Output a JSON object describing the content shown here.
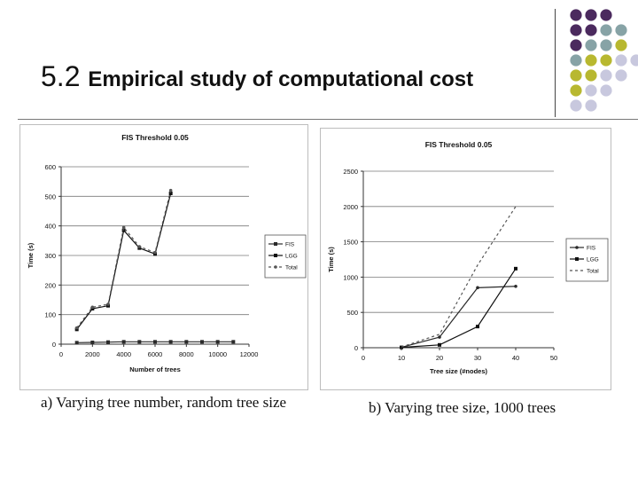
{
  "slide": {
    "title_num": "5.2",
    "title_text": "Empirical study of computational cost",
    "caption_a": "a) Varying tree number, random tree size",
    "caption_b": "b) Varying tree size, 1000 trees",
    "decor_colors": {
      "purple": "#4b2a5e",
      "teal": "#87a3a6",
      "olive": "#b8b830",
      "lavender": "#c8c8de"
    }
  },
  "chart_data": [
    {
      "type": "line",
      "title": "FIS Threshold 0.05",
      "xlabel": "Number of trees",
      "ylabel": "Time (s)",
      "xlim": [
        0,
        12000
      ],
      "ylim": [
        0,
        600
      ],
      "xticks": [
        0,
        2000,
        4000,
        6000,
        8000,
        10000,
        12000
      ],
      "xtick_labels": [
        "0",
        "2000",
        "4000",
        "6000",
        "8000",
        "10000",
        "12000"
      ],
      "yticks": [
        0,
        100,
        200,
        300,
        400,
        500,
        600
      ],
      "ytick_labels": [
        "0",
        "100",
        "200",
        "300",
        "400",
        "500",
        "600"
      ],
      "grid": true,
      "legend_position": "right",
      "series": [
        {
          "name": "FIS",
          "color": "#2a2a2a",
          "dash": "",
          "marker": "square",
          "x": [
            1000,
            2000,
            3000,
            4000,
            5000,
            6000,
            7000,
            8000,
            9000,
            10000,
            11000
          ],
          "y": [
            5,
            6,
            7,
            8,
            8,
            8,
            8,
            8,
            8,
            8,
            8
          ]
        },
        {
          "name": "LGG",
          "color": "#111111",
          "dash": "",
          "marker": "square",
          "x": [
            1000,
            2000,
            3000,
            4000,
            5000,
            6000,
            7000
          ],
          "y": [
            50,
            120,
            130,
            385,
            325,
            305,
            510
          ]
        },
        {
          "name": "Total",
          "color": "#555555",
          "dash": "3,3",
          "marker": "dot",
          "x": [
            1000,
            2000,
            3000,
            4000,
            5000,
            6000,
            7000
          ],
          "y": [
            55,
            125,
            135,
            395,
            330,
            310,
            520
          ]
        }
      ]
    },
    {
      "type": "line",
      "title": "FIS Threshold 0.05",
      "xlabel": "Tree size (#nodes)",
      "ylabel": "Time (s)",
      "xlim": [
        0,
        50
      ],
      "ylim": [
        0,
        2500
      ],
      "xticks": [
        0,
        10,
        20,
        30,
        40,
        50
      ],
      "xtick_labels": [
        "0",
        "10",
        "20",
        "30",
        "40",
        "50"
      ],
      "yticks": [
        0,
        500,
        1000,
        1500,
        2000,
        2500
      ],
      "ytick_labels": [
        "0",
        "500",
        "1000",
        "1500",
        "2000",
        "2500"
      ],
      "grid": true,
      "legend_position": "right",
      "series": [
        {
          "name": "FIS",
          "color": "#2a2a2a",
          "dash": "",
          "marker": "dot",
          "x": [
            10,
            20,
            30,
            40
          ],
          "y": [
            5,
            150,
            850,
            870
          ]
        },
        {
          "name": "LGG",
          "color": "#111111",
          "dash": "",
          "marker": "square",
          "x": [
            10,
            20,
            30,
            40
          ],
          "y": [
            5,
            40,
            300,
            1120
          ]
        },
        {
          "name": "Total",
          "color": "#555555",
          "dash": "3,3",
          "marker": "none",
          "x": [
            10,
            20,
            30,
            40
          ],
          "y": [
            10,
            190,
            1170,
            2000
          ]
        }
      ]
    }
  ]
}
